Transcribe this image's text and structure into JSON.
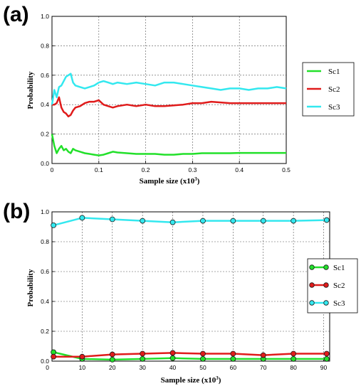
{
  "chart_data": [
    {
      "panel_label": "(a)",
      "type": "line",
      "xlabel": "Sample size (x10",
      "xlabel_sup": "3",
      "xlabel_end": ")",
      "ylabel": "Probability",
      "xlim": [
        0,
        0.5
      ],
      "ylim": [
        0,
        1.0
      ],
      "xticks": [
        0,
        0.1,
        0.2,
        0.3,
        0.4,
        0.5
      ],
      "xtick_labels": [
        "0",
        "0.1",
        "0.2",
        "0.3",
        "0.4",
        "0.5"
      ],
      "yticks": [
        0,
        0.2,
        0.4,
        0.6,
        0.8,
        1.0
      ],
      "ytick_labels": [
        "0.0",
        "0.2",
        "0.4",
        "0.6",
        "0.8",
        "1.0"
      ],
      "grid": true,
      "legend": "right",
      "series": [
        {
          "name": "Sc1",
          "color": "#22e02a",
          "x": [
            0,
            0.005,
            0.01,
            0.015,
            0.02,
            0.025,
            0.03,
            0.035,
            0.04,
            0.045,
            0.05,
            0.06,
            0.07,
            0.08,
            0.09,
            0.1,
            0.11,
            0.12,
            0.13,
            0.14,
            0.16,
            0.18,
            0.2,
            0.22,
            0.24,
            0.26,
            0.28,
            0.3,
            0.32,
            0.34,
            0.36,
            0.38,
            0.4,
            0.42,
            0.44,
            0.46,
            0.48,
            0.5
          ],
          "y": [
            0.2,
            0.12,
            0.07,
            0.1,
            0.12,
            0.09,
            0.1,
            0.08,
            0.07,
            0.1,
            0.09,
            0.08,
            0.07,
            0.065,
            0.06,
            0.055,
            0.06,
            0.07,
            0.08,
            0.075,
            0.07,
            0.065,
            0.065,
            0.065,
            0.06,
            0.06,
            0.065,
            0.065,
            0.07,
            0.07,
            0.07,
            0.07,
            0.072,
            0.072,
            0.072,
            0.072,
            0.072,
            0.072
          ]
        },
        {
          "name": "Sc2",
          "color": "#e01b1b",
          "x": [
            0,
            0.005,
            0.01,
            0.015,
            0.02,
            0.025,
            0.03,
            0.035,
            0.04,
            0.045,
            0.05,
            0.06,
            0.07,
            0.08,
            0.09,
            0.1,
            0.11,
            0.12,
            0.13,
            0.14,
            0.16,
            0.18,
            0.2,
            0.22,
            0.24,
            0.26,
            0.28,
            0.3,
            0.32,
            0.34,
            0.36,
            0.38,
            0.4,
            0.42,
            0.44,
            0.46,
            0.48,
            0.5
          ],
          "y": [
            0.4,
            0.4,
            0.41,
            0.45,
            0.38,
            0.35,
            0.34,
            0.32,
            0.33,
            0.36,
            0.38,
            0.39,
            0.41,
            0.42,
            0.42,
            0.43,
            0.4,
            0.39,
            0.38,
            0.39,
            0.4,
            0.39,
            0.4,
            0.39,
            0.39,
            0.395,
            0.4,
            0.41,
            0.41,
            0.42,
            0.415,
            0.41,
            0.41,
            0.41,
            0.41,
            0.41,
            0.41,
            0.41
          ]
        },
        {
          "name": "Sc3",
          "color": "#33e8ef",
          "x": [
            0,
            0.005,
            0.01,
            0.015,
            0.02,
            0.025,
            0.03,
            0.035,
            0.04,
            0.045,
            0.05,
            0.06,
            0.07,
            0.08,
            0.09,
            0.1,
            0.11,
            0.12,
            0.13,
            0.14,
            0.16,
            0.18,
            0.2,
            0.22,
            0.24,
            0.26,
            0.28,
            0.3,
            0.32,
            0.34,
            0.36,
            0.38,
            0.4,
            0.42,
            0.44,
            0.46,
            0.48,
            0.5
          ],
          "y": [
            0.4,
            0.5,
            0.45,
            0.52,
            0.53,
            0.56,
            0.59,
            0.6,
            0.61,
            0.55,
            0.53,
            0.52,
            0.51,
            0.52,
            0.53,
            0.55,
            0.56,
            0.55,
            0.54,
            0.55,
            0.54,
            0.55,
            0.54,
            0.53,
            0.55,
            0.55,
            0.54,
            0.53,
            0.52,
            0.51,
            0.5,
            0.51,
            0.51,
            0.5,
            0.51,
            0.51,
            0.52,
            0.51
          ]
        }
      ]
    },
    {
      "panel_label": "(b)",
      "type": "line",
      "xlabel": "Sample size (x10",
      "xlabel_sup": "3",
      "xlabel_end": ")",
      "ylabel": "Probability",
      "xlim": [
        0,
        92
      ],
      "ylim": [
        0,
        1.0
      ],
      "xticks": [
        10,
        20,
        30,
        40,
        50,
        60,
        70,
        80,
        90
      ],
      "xtick_labels": [
        "10",
        "20",
        "30",
        "40",
        "50",
        "60",
        "70",
        "80",
        "90"
      ],
      "x_origin_label": "0",
      "yticks": [
        0,
        0.2,
        0.4,
        0.6,
        0.8,
        1.0
      ],
      "ytick_labels": [
        "0.0",
        "0.2",
        "0.4",
        "0.6",
        "0.8",
        "1.0"
      ],
      "grid": true,
      "legend": "right",
      "series": [
        {
          "name": "Sc1",
          "color": "#22e02a",
          "markers": true,
          "x": [
            0.5,
            10,
            20,
            30,
            40,
            50,
            60,
            70,
            80,
            91
          ],
          "y": [
            0.06,
            0.015,
            0.01,
            0.015,
            0.02,
            0.015,
            0.015,
            0.015,
            0.015,
            0.015
          ]
        },
        {
          "name": "Sc2",
          "color": "#e01b1b",
          "markers": true,
          "x": [
            0.5,
            10,
            20,
            30,
            40,
            50,
            60,
            70,
            80,
            91
          ],
          "y": [
            0.03,
            0.03,
            0.045,
            0.05,
            0.055,
            0.05,
            0.05,
            0.04,
            0.05,
            0.05
          ]
        },
        {
          "name": "Sc3",
          "color": "#33e8ef",
          "markers": true,
          "x": [
            0.5,
            10,
            20,
            30,
            40,
            50,
            60,
            70,
            80,
            91
          ],
          "y": [
            0.91,
            0.96,
            0.95,
            0.94,
            0.93,
            0.94,
            0.94,
            0.94,
            0.94,
            0.945
          ]
        }
      ]
    }
  ]
}
